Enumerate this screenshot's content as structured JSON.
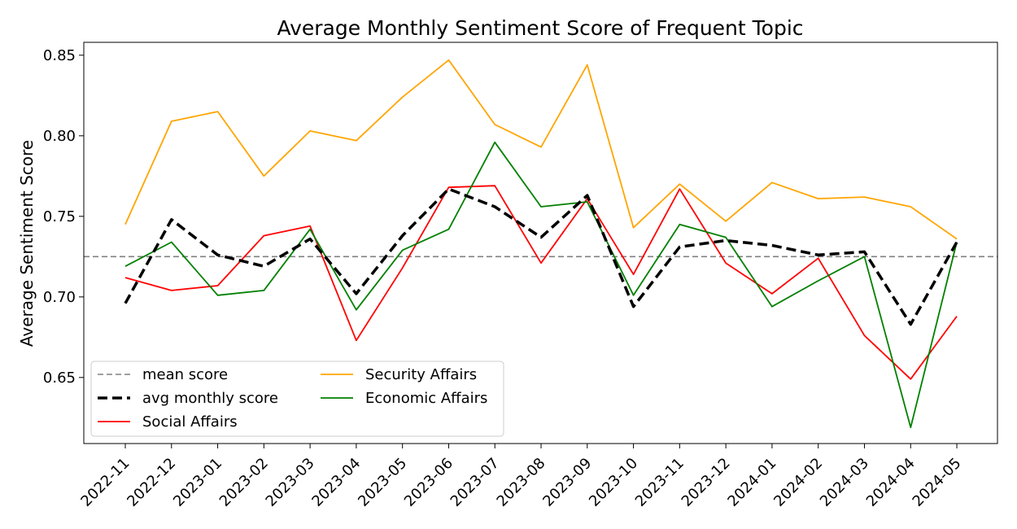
{
  "chart_data": {
    "type": "line",
    "title": "Average Monthly Sentiment Score of Frequent Topic",
    "xlabel": "",
    "ylabel": "Average Sentiment Score",
    "categories": [
      "2022-11",
      "2022-12",
      "2023-01",
      "2023-02",
      "2023-03",
      "2023-04",
      "2023-05",
      "2023-06",
      "2023-07",
      "2023-08",
      "2023-09",
      "2023-10",
      "2023-11",
      "2023-12",
      "2024-01",
      "2024-02",
      "2024-03",
      "2024-04",
      "2024-05"
    ],
    "ylim": [
      0.609,
      0.858
    ],
    "yticks": [
      0.65,
      0.7,
      0.75,
      0.8,
      0.85
    ],
    "ytick_labels": [
      "0.65",
      "0.70",
      "0.75",
      "0.80",
      "0.85"
    ],
    "grid": false,
    "legend_position": "lower-left",
    "mean_line": {
      "name": "mean score",
      "value": 0.725,
      "color": "#808080",
      "style": "dashed"
    },
    "series": [
      {
        "name": "avg monthly score",
        "color": "#000000",
        "style": "dashed-bold",
        "values": [
          0.696,
          0.748,
          0.726,
          0.719,
          0.736,
          0.702,
          0.738,
          0.767,
          0.756,
          0.737,
          0.763,
          0.694,
          0.731,
          0.735,
          0.732,
          0.726,
          0.728,
          0.683,
          0.734
        ]
      },
      {
        "name": "Social Affairs",
        "color": "#ff0000",
        "style": "solid",
        "values": [
          0.712,
          0.704,
          0.707,
          0.738,
          0.744,
          0.673,
          0.718,
          0.768,
          0.769,
          0.721,
          0.761,
          0.714,
          0.767,
          0.721,
          0.702,
          0.724,
          0.676,
          0.649,
          0.688
        ]
      },
      {
        "name": "Security Affairs",
        "color": "#ffa500",
        "style": "solid",
        "values": [
          0.745,
          0.809,
          0.815,
          0.775,
          0.803,
          0.797,
          0.824,
          0.847,
          0.807,
          0.793,
          0.844,
          0.743,
          0.77,
          0.747,
          0.771,
          0.761,
          0.762,
          0.756,
          0.736
        ]
      },
      {
        "name": "Economic Affairs",
        "color": "#008000",
        "style": "solid",
        "values": [
          0.719,
          0.734,
          0.701,
          0.704,
          0.742,
          0.692,
          0.729,
          0.742,
          0.796,
          0.756,
          0.759,
          0.701,
          0.745,
          0.737,
          0.694,
          0.71,
          0.725,
          0.619,
          0.734
        ]
      }
    ]
  }
}
